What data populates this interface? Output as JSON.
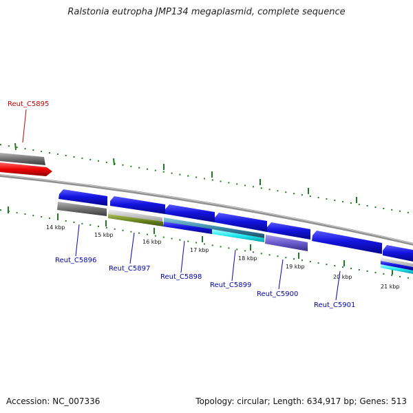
{
  "title": "Ralstonia eutropha JMP134 megaplasmid, complete sequence",
  "footer": {
    "accession": "Accession: NC_007336",
    "stats": "Topology: circular; Length: 634,917 bp; Genes: 513"
  },
  "colors": {
    "backbone": "#8c8c8c",
    "ticks": "#1e7a1e",
    "cds_blue": "#1010d8",
    "highlight_red": "#e00000",
    "label_blue": "#0000b0",
    "label_red": "#c00000",
    "gray_feature": "#6e6e6e",
    "olive_feature": "#6e8a20",
    "cyan_feature": "#20e8f0",
    "violet_feature": "#6a5acd",
    "teal_feature": "#3a8aa8"
  },
  "scale_labels": [
    "14 kbp",
    "15 kbp",
    "16 kbp",
    "17 kbp",
    "18 kbp",
    "19 kbp",
    "20 kbp",
    "21 kbp"
  ],
  "gene_labels": [
    {
      "text": "Reut_C5895",
      "color": "red"
    },
    {
      "text": "Reut_C5896",
      "color": "blue"
    },
    {
      "text": "Reut_C5897",
      "color": "blue"
    },
    {
      "text": "Reut_C5898",
      "color": "blue"
    },
    {
      "text": "Reut_C5899",
      "color": "blue"
    },
    {
      "text": "Reut_C5900",
      "color": "blue"
    },
    {
      "text": "Reut_C5901",
      "color": "blue"
    }
  ]
}
